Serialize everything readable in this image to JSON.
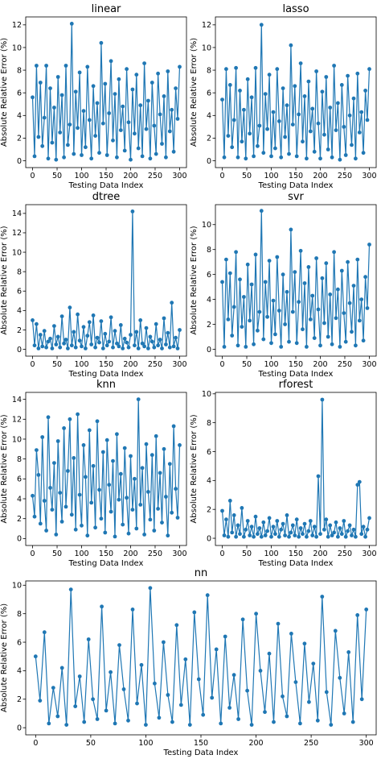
{
  "chart_data": [
    {
      "type": "line",
      "title": "linear",
      "xlabel": "Testing Data Index",
      "ylabel": "Absolute Relative Error (%)",
      "xlim": [
        -14,
        314
      ],
      "ylim": [
        -0.6,
        12.7
      ],
      "xticks": [
        0,
        50,
        100,
        150,
        200,
        250,
        300
      ],
      "yticks": [
        0,
        2,
        4,
        6,
        8,
        10,
        12
      ],
      "color": "#1f77b4",
      "grid": false,
      "legend": "none",
      "x": [
        0,
        4,
        8,
        12,
        16,
        20,
        24,
        28,
        32,
        36,
        40,
        44,
        48,
        52,
        56,
        60,
        64,
        68,
        72,
        76,
        80,
        84,
        88,
        92,
        96,
        100,
        104,
        108,
        112,
        116,
        120,
        124,
        128,
        132,
        136,
        140,
        144,
        148,
        152,
        156,
        160,
        164,
        168,
        172,
        176,
        180,
        184,
        188,
        192,
        196,
        200,
        204,
        208,
        212,
        216,
        220,
        224,
        228,
        232,
        236,
        240,
        244,
        248,
        252,
        256,
        260,
        264,
        268,
        272,
        276,
        280,
        284,
        288,
        292,
        296,
        300
      ],
      "y": [
        5.6,
        0.4,
        8.4,
        2.1,
        6.9,
        1.3,
        3.8,
        8.4,
        0.2,
        6.4,
        1.6,
        4.7,
        0.1,
        7.4,
        2.5,
        5.8,
        0.3,
        8.4,
        1.4,
        3.2,
        12.1,
        0.6,
        6.1,
        2.9,
        7.8,
        0.5,
        4.4,
        1.2,
        8.3,
        3.6,
        0.2,
        6.6,
        2.2,
        5.1,
        0.7,
        10.4,
        3.3,
        6.8,
        0.5,
        4.2,
        8.8,
        1.8,
        5.9,
        0.3,
        7.2,
        2.7,
        4.8,
        0.9,
        8.1,
        3.4,
        0.1,
        6.3,
        2.4,
        7.6,
        1.1,
        4.9,
        0.4,
        8.6,
        2.8,
        5.3,
        0.2,
        6.9,
        3.1,
        0.6,
        7.7,
        4.1,
        1.5,
        5.7,
        0.3,
        7.9,
        2.6,
        4.5,
        0.8,
        6.4,
        3.7,
        8.3
      ]
    },
    {
      "type": "line",
      "title": "lasso",
      "xlabel": "Testing Data Index",
      "ylabel": "Absolute Relative Error (%)",
      "xlim": [
        -14,
        314
      ],
      "ylim": [
        -0.6,
        12.7
      ],
      "xticks": [
        0,
        50,
        100,
        150,
        200,
        250,
        300
      ],
      "yticks": [
        0,
        2,
        4,
        6,
        8,
        10,
        12
      ],
      "color": "#1f77b4",
      "grid": false,
      "legend": "none",
      "x": [
        0,
        4,
        8,
        12,
        16,
        20,
        24,
        28,
        32,
        36,
        40,
        44,
        48,
        52,
        56,
        60,
        64,
        68,
        72,
        76,
        80,
        84,
        88,
        92,
        96,
        100,
        104,
        108,
        112,
        116,
        120,
        124,
        128,
        132,
        136,
        140,
        144,
        148,
        152,
        156,
        160,
        164,
        168,
        172,
        176,
        180,
        184,
        188,
        192,
        196,
        200,
        204,
        208,
        212,
        216,
        220,
        224,
        228,
        232,
        236,
        240,
        244,
        248,
        252,
        256,
        260,
        264,
        268,
        272,
        276,
        280,
        284,
        288,
        292,
        296,
        300
      ],
      "y": [
        5.4,
        0.3,
        8.1,
        2.2,
        6.7,
        1.2,
        3.6,
        8.2,
        0.3,
        6.2,
        1.7,
        4.5,
        0.2,
        7.2,
        2.4,
        5.6,
        0.4,
        8.2,
        1.3,
        3.1,
        12.0,
        0.7,
        5.9,
        2.8,
        7.6,
        0.4,
        4.3,
        1.1,
        8.1,
        3.5,
        0.3,
        6.4,
        2.1,
        4.9,
        0.6,
        10.2,
        3.2,
        6.6,
        0.4,
        4.1,
        8.6,
        1.7,
        5.7,
        0.2,
        7.0,
        2.6,
        4.6,
        0.8,
        7.9,
        3.3,
        0.2,
        6.1,
        2.3,
        7.4,
        1.0,
        4.7,
        0.3,
        8.4,
        2.7,
        5.1,
        0.1,
        6.7,
        3.0,
        0.5,
        7.5,
        4.0,
        1.4,
        5.5,
        0.2,
        7.7,
        2.5,
        4.3,
        0.7,
        6.2,
        3.6,
        8.1
      ]
    },
    {
      "type": "line",
      "title": "dtree",
      "xlabel": "Testing Data Index",
      "ylabel": "Absolute Relative Error (%)",
      "xlim": [
        -14,
        314
      ],
      "ylim": [
        -0.7,
        14.9
      ],
      "xticks": [
        0,
        50,
        100,
        150,
        200,
        250,
        300
      ],
      "yticks": [
        0,
        2,
        4,
        6,
        8,
        10,
        12,
        14
      ],
      "color": "#1f77b4",
      "grid": false,
      "legend": "none",
      "x": [
        0,
        4,
        8,
        12,
        16,
        20,
        24,
        28,
        32,
        36,
        40,
        44,
        48,
        52,
        56,
        60,
        64,
        68,
        72,
        76,
        80,
        84,
        88,
        92,
        96,
        100,
        104,
        108,
        112,
        116,
        120,
        124,
        128,
        132,
        136,
        140,
        144,
        148,
        152,
        156,
        160,
        164,
        168,
        172,
        176,
        180,
        184,
        188,
        192,
        196,
        200,
        204,
        208,
        212,
        216,
        220,
        224,
        228,
        232,
        236,
        240,
        244,
        248,
        252,
        256,
        260,
        264,
        268,
        272,
        276,
        280,
        284,
        288,
        292,
        296,
        300
      ],
      "y": [
        3.0,
        0.4,
        2.6,
        0.1,
        1.5,
        0.3,
        1.9,
        0.2,
        0.8,
        1.1,
        0.1,
        2.4,
        0.5,
        1.3,
        0.2,
        3.4,
        0.6,
        1.0,
        0.1,
        4.3,
        0.4,
        1.8,
        0.2,
        3.6,
        0.9,
        0.3,
        2.3,
        0.1,
        1.4,
        2.8,
        0.5,
        3.5,
        0.2,
        1.2,
        0.7,
        2.9,
        0.1,
        1.6,
        0.4,
        0.8,
        3.3,
        0.2,
        1.9,
        0.6,
        0.3,
        2.5,
        0.1,
        1.1,
        0.7,
        0.2,
        1.5,
        14.2,
        0.4,
        1.8,
        0.1,
        3.0,
        0.6,
        0.3,
        2.2,
        0.1,
        1.3,
        0.8,
        0.2,
        2.6,
        0.4,
        1.0,
        0.1,
        3.2,
        0.5,
        1.7,
        0.2,
        4.8,
        0.3,
        1.2,
        0.1,
        2.0
      ]
    },
    {
      "type": "line",
      "title": "svr",
      "xlabel": "Testing Data Index",
      "ylabel": "Absolute Relative Error (%)",
      "xlim": [
        -14,
        314
      ],
      "ylim": [
        -0.55,
        11.6
      ],
      "xticks": [
        0,
        50,
        100,
        150,
        200,
        250,
        300
      ],
      "yticks": [
        0,
        2,
        4,
        6,
        8,
        10
      ],
      "color": "#1f77b4",
      "grid": false,
      "legend": "none",
      "x": [
        0,
        4,
        8,
        12,
        16,
        20,
        24,
        28,
        32,
        36,
        40,
        44,
        48,
        52,
        56,
        60,
        64,
        68,
        72,
        76,
        80,
        84,
        88,
        92,
        96,
        100,
        104,
        108,
        112,
        116,
        120,
        124,
        128,
        132,
        136,
        140,
        144,
        148,
        152,
        156,
        160,
        164,
        168,
        172,
        176,
        180,
        184,
        188,
        192,
        196,
        200,
        204,
        208,
        212,
        216,
        220,
        224,
        228,
        232,
        236,
        240,
        244,
        248,
        252,
        256,
        260,
        264,
        268,
        272,
        276,
        280,
        284,
        288,
        292,
        296,
        300
      ],
      "y": [
        5.4,
        0.2,
        7.2,
        2.4,
        6.1,
        1.1,
        3.4,
        7.8,
        0.3,
        5.6,
        1.8,
        4.2,
        0.2,
        6.8,
        2.3,
        5.2,
        0.4,
        7.6,
        1.5,
        3.0,
        11.1,
        0.8,
        5.4,
        2.6,
        7.1,
        0.5,
        3.9,
        1.2,
        7.4,
        3.1,
        0.2,
        6.0,
        2.0,
        4.6,
        0.6,
        9.6,
        3.0,
        6.2,
        0.5,
        3.8,
        7.9,
        1.6,
        5.3,
        0.2,
        6.6,
        2.4,
        4.3,
        0.9,
        7.3,
        3.2,
        0.3,
        5.7,
        2.1,
        6.9,
        1.0,
        4.4,
        0.4,
        7.8,
        2.5,
        4.8,
        0.2,
        6.3,
        2.9,
        0.6,
        7.0,
        3.7,
        1.4,
        5.1,
        0.3,
        7.2,
        2.3,
        4.0,
        0.7,
        5.8,
        3.3,
        8.4
      ]
    },
    {
      "type": "line",
      "title": "knn",
      "xlabel": "Testing Data Index",
      "ylabel": "Absolute Relative Error (%)",
      "xlim": [
        -14,
        314
      ],
      "ylim": [
        -0.7,
        14.7
      ],
      "xticks": [
        0,
        50,
        100,
        150,
        200,
        250,
        300
      ],
      "yticks": [
        0,
        2,
        4,
        6,
        8,
        10,
        12,
        14
      ],
      "color": "#1f77b4",
      "grid": false,
      "legend": "none",
      "x": [
        0,
        4,
        8,
        12,
        16,
        20,
        24,
        28,
        32,
        36,
        40,
        44,
        48,
        52,
        56,
        60,
        64,
        68,
        72,
        76,
        80,
        84,
        88,
        92,
        96,
        100,
        104,
        108,
        112,
        116,
        120,
        124,
        128,
        132,
        136,
        140,
        144,
        148,
        152,
        156,
        160,
        164,
        168,
        172,
        176,
        180,
        184,
        188,
        192,
        196,
        200,
        204,
        208,
        212,
        216,
        220,
        224,
        228,
        232,
        236,
        240,
        244,
        248,
        252,
        256,
        260,
        264,
        268,
        272,
        276,
        280,
        284,
        288,
        292,
        296,
        300
      ],
      "y": [
        4.3,
        2.2,
        8.9,
        6.4,
        1.5,
        10.2,
        3.8,
        0.8,
        12.2,
        5.1,
        2.9,
        7.6,
        0.4,
        9.8,
        4.6,
        1.7,
        11.1,
        3.2,
        6.8,
        12.0,
        2.4,
        8.1,
        0.9,
        12.5,
        4.4,
        1.3,
        9.4,
        6.2,
        0.3,
        10.9,
        3.6,
        7.3,
        1.1,
        11.8,
        4.9,
        2.0,
        8.7,
        0.6,
        9.9,
        5.4,
        2.7,
        7.8,
        0.2,
        10.5,
        3.9,
        6.5,
        1.4,
        9.1,
        4.1,
        0.5,
        8.3,
        2.9,
        6.0,
        1.0,
        14.0,
        3.4,
        7.1,
        0.4,
        9.5,
        4.7,
        1.9,
        8.4,
        0.8,
        10.3,
        3.0,
        6.6,
        1.6,
        9.0,
        4.2,
        0.3,
        7.5,
        2.6,
        11.3,
        5.0,
        2.1,
        9.4
      ]
    },
    {
      "type": "line",
      "title": "rforest",
      "xlabel": "Testing Data Index",
      "ylabel": "Absolute Relative Error (%)",
      "xlim": [
        -14,
        314
      ],
      "ylim": [
        -0.5,
        10.1
      ],
      "xticks": [
        0,
        50,
        100,
        150,
        200,
        250,
        300
      ],
      "yticks": [
        0,
        2,
        4,
        6,
        8,
        10
      ],
      "color": "#1f77b4",
      "grid": false,
      "legend": "none",
      "x": [
        0,
        4,
        8,
        12,
        16,
        20,
        24,
        28,
        32,
        36,
        40,
        44,
        48,
        52,
        56,
        60,
        64,
        68,
        72,
        76,
        80,
        84,
        88,
        92,
        96,
        100,
        104,
        108,
        112,
        116,
        120,
        124,
        128,
        132,
        136,
        140,
        144,
        148,
        152,
        156,
        160,
        164,
        168,
        172,
        176,
        180,
        184,
        188,
        192,
        196,
        200,
        204,
        208,
        212,
        216,
        220,
        224,
        228,
        232,
        236,
        240,
        244,
        248,
        252,
        256,
        260,
        264,
        268,
        272,
        276,
        280,
        284,
        288,
        292,
        296,
        300
      ],
      "y": [
        1.9,
        0.2,
        1.3,
        0.1,
        2.6,
        0.4,
        1.6,
        0.1,
        0.9,
        0.3,
        2.1,
        0.1,
        0.6,
        1.2,
        0.2,
        0.8,
        0.1,
        1.5,
        0.3,
        0.7,
        0.1,
        1.1,
        0.2,
        0.5,
        1.4,
        0.1,
        0.8,
        0.3,
        1.2,
        0.1,
        0.6,
        1.0,
        0.2,
        1.6,
        0.1,
        0.4,
        0.9,
        0.2,
        1.3,
        0.1,
        0.7,
        0.3,
        1.0,
        0.1,
        0.5,
        1.2,
        0.2,
        0.8,
        0.1,
        4.3,
        0.3,
        9.6,
        0.6,
        1.3,
        0.1,
        0.9,
        0.2,
        0.4,
        1.1,
        0.1,
        0.7,
        0.3,
        1.2,
        0.1,
        0.5,
        0.9,
        0.2,
        0.6,
        0.1,
        3.7,
        3.9,
        0.3,
        0.8,
        0.1,
        0.6,
        1.4
      ]
    },
    {
      "type": "line",
      "title": "nn",
      "xlabel": "Testing Data Index",
      "ylabel": "Absolute Relative Error (%)",
      "xlim": [
        -9,
        309
      ],
      "ylim": [
        -0.5,
        10.3
      ],
      "xticks": [
        0,
        50,
        100,
        150,
        200,
        250,
        300
      ],
      "yticks": [
        0,
        2,
        4,
        6,
        8,
        10
      ],
      "color": "#1f77b4",
      "grid": false,
      "legend": "none",
      "x": [
        0,
        4,
        8,
        12,
        16,
        20,
        24,
        28,
        32,
        36,
        40,
        44,
        48,
        52,
        56,
        60,
        64,
        68,
        72,
        76,
        80,
        84,
        88,
        92,
        96,
        100,
        104,
        108,
        112,
        116,
        120,
        124,
        128,
        132,
        136,
        140,
        144,
        148,
        152,
        156,
        160,
        164,
        168,
        172,
        176,
        180,
        184,
        188,
        192,
        196,
        200,
        204,
        208,
        212,
        216,
        220,
        224,
        228,
        232,
        236,
        240,
        244,
        248,
        252,
        256,
        260,
        264,
        268,
        272,
        276,
        280,
        284,
        288,
        292,
        296,
        300
      ],
      "y": [
        5.0,
        1.9,
        6.7,
        0.3,
        2.8,
        0.8,
        4.2,
        0.2,
        9.7,
        1.5,
        3.6,
        0.4,
        6.2,
        2.0,
        0.6,
        8.5,
        1.2,
        3.9,
        0.3,
        5.8,
        2.7,
        0.5,
        8.3,
        1.7,
        4.4,
        0.2,
        9.8,
        3.1,
        0.7,
        6.0,
        2.3,
        0.4,
        7.2,
        1.6,
        4.8,
        0.2,
        8.1,
        3.4,
        0.9,
        9.3,
        2.1,
        5.5,
        0.3,
        6.4,
        1.4,
        3.7,
        0.6,
        7.6,
        2.6,
        0.2,
        8.0,
        4.0,
        1.1,
        5.2,
        0.4,
        7.3,
        2.2,
        0.8,
        6.6,
        3.2,
        0.3,
        5.9,
        1.8,
        4.5,
        0.5,
        9.2,
        2.5,
        0.2,
        6.8,
        3.5,
        1.0,
        5.3,
        0.4,
        7.9,
        2.0,
        8.3
      ]
    }
  ]
}
